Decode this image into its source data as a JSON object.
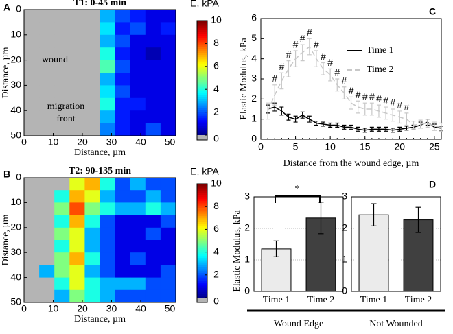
{
  "chart_data": [
    {
      "type": "heatmap",
      "panel": "A",
      "title": "T1: 0-45 min",
      "colorbar_label": "E, kPA",
      "xlabel": "Distance, µm",
      "ylabel": "Distance, µm",
      "xlim": [
        0,
        52
      ],
      "ylim": [
        0,
        50
      ],
      "xticks": [
        0,
        10,
        20,
        30,
        40,
        50
      ],
      "yticks": [
        0,
        10,
        20,
        30,
        40,
        50
      ],
      "y_inverted": true,
      "clim": [
        0,
        10
      ],
      "cticks": [
        0,
        2,
        4,
        6,
        8,
        10
      ],
      "colormap": "jet",
      "missing_color": "#b4b4b4",
      "annotations": [
        "wound",
        "migration",
        "front"
      ],
      "z": [
        [
          null,
          null,
          null,
          null,
          null,
          3,
          2,
          1.5,
          1,
          1
        ],
        [
          null,
          null,
          null,
          null,
          null,
          3.5,
          1.5,
          2,
          1,
          1.5
        ],
        [
          null,
          null,
          null,
          null,
          null,
          3,
          2,
          1,
          1,
          1
        ],
        [
          null,
          null,
          null,
          null,
          null,
          4,
          1.5,
          1,
          0.5,
          1
        ],
        [
          null,
          null,
          null,
          null,
          null,
          4.5,
          2,
          1,
          1,
          1
        ],
        [
          null,
          null,
          null,
          null,
          null,
          3,
          1.5,
          1,
          1,
          1
        ],
        [
          null,
          null,
          null,
          null,
          null,
          3.5,
          2,
          1,
          1,
          1
        ],
        [
          null,
          null,
          null,
          null,
          null,
          4,
          1.5,
          1.5,
          1,
          1
        ],
        [
          null,
          null,
          null,
          null,
          null,
          3,
          1.5,
          1,
          1,
          1
        ],
        [
          null,
          null,
          null,
          null,
          null,
          2.5,
          1.5,
          1,
          2,
          1
        ]
      ]
    },
    {
      "type": "heatmap",
      "panel": "B",
      "title": "T2: 90-135 min",
      "colorbar_label": "E, kPA",
      "xlabel": "Distance, µm",
      "ylabel": "Distance, µm",
      "xlim": [
        0,
        52
      ],
      "ylim": [
        0,
        50
      ],
      "xticks": [
        0,
        10,
        20,
        30,
        40,
        50
      ],
      "yticks": [
        0,
        10,
        20,
        30,
        40,
        50
      ],
      "y_inverted": true,
      "clim": [
        0,
        10
      ],
      "cticks": [
        0,
        2,
        4,
        6,
        8,
        10
      ],
      "colormap": "jet",
      "missing_color": "#b4b4b4",
      "z": [
        [
          null,
          null,
          null,
          6,
          7,
          4,
          2,
          3,
          2,
          2
        ],
        [
          null,
          null,
          4,
          7,
          6,
          3,
          2,
          2,
          3,
          2
        ],
        [
          null,
          null,
          5,
          8,
          5,
          4,
          3,
          3,
          4,
          3
        ],
        [
          null,
          null,
          4,
          7,
          4,
          2,
          1,
          1,
          1,
          2
        ],
        [
          null,
          null,
          5,
          6,
          3,
          2,
          1,
          1,
          2,
          1
        ],
        [
          null,
          null,
          4,
          6,
          3,
          2,
          1,
          1,
          1,
          1
        ],
        [
          null,
          null,
          5,
          7,
          4,
          2,
          1,
          2,
          1,
          1
        ],
        [
          null,
          3,
          5,
          6,
          3,
          2,
          1,
          1,
          1,
          2
        ],
        [
          null,
          null,
          4,
          6,
          4,
          3,
          3,
          3,
          2,
          2
        ],
        [
          null,
          null,
          3,
          5,
          4,
          3,
          2,
          2,
          2,
          2
        ]
      ]
    },
    {
      "type": "line",
      "panel": "C",
      "xlabel": "Distance from the wound edge, µm",
      "ylabel": "Elastic Modulus, kPa",
      "xlim": [
        0,
        26
      ],
      "ylim": [
        0,
        6
      ],
      "xticks": [
        0,
        5,
        10,
        15,
        20,
        25
      ],
      "yticks": [
        0,
        1,
        2,
        3,
        4,
        5,
        6
      ],
      "legend": "upper right",
      "x": [
        1,
        2,
        3,
        4,
        5,
        6,
        7,
        8,
        9,
        10,
        11,
        12,
        13,
        14,
        15,
        16,
        17,
        18,
        19,
        20,
        21,
        22,
        23,
        24,
        25,
        26
      ],
      "series": [
        {
          "name": "Time 1",
          "color": "#000000",
          "dash": false,
          "values": [
            1.5,
            1.6,
            1.4,
            1.1,
            1.0,
            1.2,
            1.0,
            0.8,
            0.75,
            0.7,
            0.7,
            0.6,
            0.6,
            0.5,
            0.45,
            0.5,
            0.5,
            0.5,
            0.45,
            0.5,
            0.55,
            0.6,
            0.7,
            0.85,
            0.6,
            0.55
          ],
          "errors": [
            0.2,
            0.2,
            0.2,
            0.15,
            0.15,
            0.15,
            0.15,
            0.1,
            0.1,
            0.1,
            0.1,
            0.1,
            0.1,
            0.1,
            0.1,
            0.1,
            0.1,
            0.1,
            0.1,
            0.1,
            0.1,
            0.1,
            0.15,
            0.15,
            0.15,
            0.1
          ]
        },
        {
          "name": "Time 2",
          "color": "#c8c8c8",
          "dash": true,
          "values": [
            1.4,
            2.2,
            2.9,
            3.5,
            4.0,
            4.3,
            4.6,
            4.0,
            3.5,
            3.2,
            2.7,
            2.3,
            1.8,
            1.6,
            1.5,
            1.5,
            1.4,
            1.3,
            1.2,
            1.1,
            1.0,
            0.7,
            0.75,
            0.8,
            0.65,
            0.6
          ],
          "errors": [
            0.4,
            0.5,
            0.4,
            0.4,
            0.4,
            0.4,
            0.4,
            0.4,
            0.3,
            0.3,
            0.3,
            0.3,
            0.3,
            0.3,
            0.3,
            0.3,
            0.3,
            0.3,
            0.3,
            0.3,
            0.3,
            0.2,
            0.2,
            0.2,
            0.2,
            0.2
          ]
        }
      ],
      "sig_label": "#",
      "sig_x": [
        2,
        3,
        4,
        5,
        6,
        7,
        8,
        9,
        10,
        11,
        12,
        13,
        14,
        15,
        16,
        17,
        18,
        19,
        20,
        21
      ]
    },
    {
      "type": "bar",
      "group_label": "Wound Edge",
      "ylabel": "Elastic Modulus, kPa",
      "categories": [
        "Time 1",
        "Time 2"
      ],
      "values": [
        1.35,
        2.33
      ],
      "errors": [
        0.25,
        0.5
      ],
      "colors": [
        "#ebebeb",
        "#404040"
      ],
      "ylim": [
        0,
        3
      ],
      "yticks": [
        0,
        1,
        2,
        3
      ],
      "grid": true,
      "significance": "*"
    },
    {
      "type": "bar",
      "panel": "D",
      "group_label": "Not Wounded",
      "categories": [
        "Time 1",
        "Time 2"
      ],
      "values": [
        2.43,
        2.27
      ],
      "errors": [
        0.35,
        0.4
      ],
      "colors": [
        "#ebebeb",
        "#404040"
      ],
      "ylim": [
        0,
        3
      ],
      "yticks": [
        0,
        1,
        2,
        3
      ],
      "grid": true
    }
  ]
}
